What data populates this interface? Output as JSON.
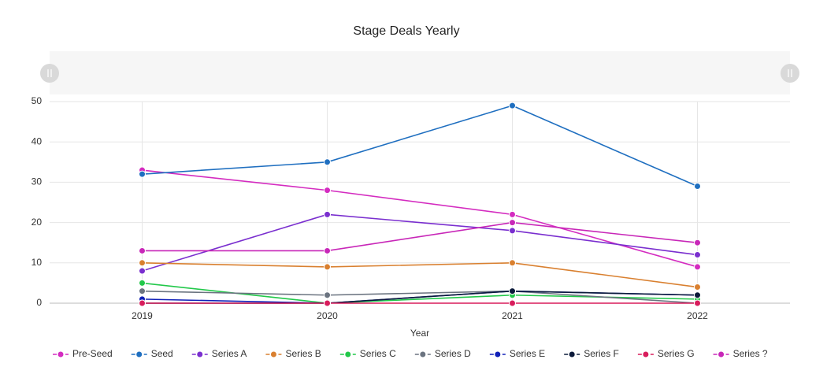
{
  "chart_data": {
    "type": "line",
    "title": "Stage Deals Yearly",
    "x_label": "Year",
    "categories": [
      "2019",
      "2020",
      "2021",
      "2022"
    ],
    "ylim": [
      0,
      50
    ],
    "yticks": [
      0,
      10,
      20,
      30,
      40,
      50
    ],
    "grid": true,
    "legend": "bottom",
    "series": [
      {
        "name": "Pre-Seed",
        "color": "#d42cc0",
        "values": [
          33,
          28,
          22,
          9
        ]
      },
      {
        "name": "Seed",
        "color": "#1f6fc0",
        "values": [
          32,
          35,
          49,
          29
        ]
      },
      {
        "name": "Series A",
        "color": "#7a2fcf",
        "values": [
          8,
          22,
          18,
          12
        ]
      },
      {
        "name": "Series B",
        "color": "#d98030",
        "values": [
          10,
          9,
          10,
          4
        ]
      },
      {
        "name": "Series C",
        "color": "#22c84a",
        "values": [
          5,
          0,
          2,
          1
        ]
      },
      {
        "name": "Series D",
        "color": "#6b7480",
        "values": [
          3,
          2,
          3,
          0
        ]
      },
      {
        "name": "Series E",
        "color": "#1020b8",
        "values": [
          1,
          0,
          3,
          2
        ]
      },
      {
        "name": "Series F",
        "color": "#0b1a3a",
        "values": [
          0,
          0,
          3,
          2
        ]
      },
      {
        "name": "Series G",
        "color": "#d81d5c",
        "values": [
          0,
          0,
          0,
          0
        ]
      },
      {
        "name": "Series ?",
        "color": "#c827b8",
        "values": [
          13,
          13,
          20,
          15
        ]
      }
    ]
  }
}
